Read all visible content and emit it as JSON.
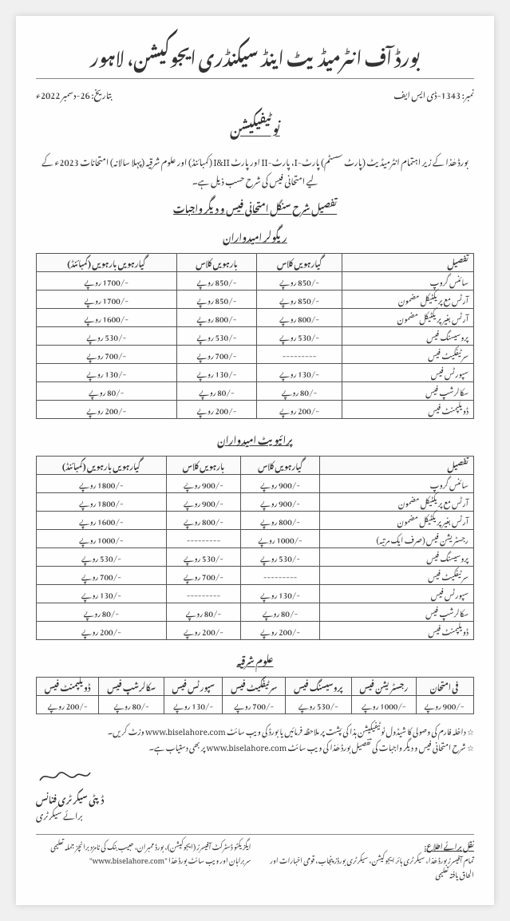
{
  "header": {
    "org_title": "بورڈ آف انٹرمیڈیٹ اینڈ سیکنڈری ایجوکیشن، لاہور",
    "ref_no": "نمبر: 1343-ڈی ایس ایف",
    "date": "بتاریخ: 26-دسمبر 2022ء",
    "notification": "نوٹیفیکیشن"
  },
  "intro": "بورڈ ھٰذا کے زیر اہتمام انٹرمیڈیٹ (پارٹ سسٹم) پارٹ-I، پارٹ-II اور پارٹ I&II (کمبائنڈ) اور علوم شرقیہ (پہلا سالانہ) امتحانات 2023ء کے لیے امتحانی فیس کی شرح حسب ذیل ہے۔",
  "detail_heading": "تفصیل شرح سنگل امتحانی فیس و دیگر واجبات",
  "section1": {
    "title": "ریگولر امیدواران",
    "headers": [
      "تفصیل",
      "گیارہویں کلاس",
      "بارہویں کلاس",
      "گیارہویں بارہویں (کمبائنڈ)"
    ],
    "rows": [
      [
        "سائنس گروپ",
        "-/850 روپے",
        "-/850 روپے",
        "-/1700 روپے"
      ],
      [
        "آرٹس مع پریکٹیکل مضمون",
        "-/850 روپے",
        "-/850 روپے",
        "-/1700 روپے"
      ],
      [
        "آرٹس بغیر پریکٹیکل مضمون",
        "-/800 روپے",
        "-/800 روپے",
        "-/1600 روپے"
      ],
      [
        "پروسیسنگ فیس",
        "-/530 روپے",
        "-/530 روپے",
        "-/530 روپے"
      ],
      [
        "سرٹیفکیٹ فیس",
        "---------",
        "-/700 روپے",
        "-/700 روپے"
      ],
      [
        "سپورٹس فیس",
        "-/130 روپے",
        "-/130 روپے",
        "-/130 روپے"
      ],
      [
        "سکالرشپ فیس",
        "-/80 روپے",
        "-/80 روپے",
        "-/80 روپے"
      ],
      [
        "ڈویلپمنٹ فیس",
        "-/200 روپے",
        "-/200 روپے",
        "-/200 روپے"
      ]
    ]
  },
  "section2": {
    "title": "پرائیویٹ امیدواران",
    "headers": [
      "تفصیل",
      "گیارہویں کلاس",
      "بارہویں کلاس",
      "گیارہویں بارہویں (کمبائنڈ)"
    ],
    "rows": [
      [
        "سائنس گروپ",
        "-/900 روپے",
        "-/900 روپے",
        "-/1800 روپے"
      ],
      [
        "آرٹس مع پریکٹیکل مضمون",
        "-/900 روپے",
        "-/900 روپے",
        "-/1800 روپے"
      ],
      [
        "آرٹس بغیر پریکٹیکل مضمون",
        "-/800 روپے",
        "-/800 روپے",
        "-/1600 روپے"
      ],
      [
        "رجسٹریشن فیس (صرف ایک مرتبہ)",
        "-/1000 روپے",
        "---------",
        "-/1000 روپے"
      ],
      [
        "پروسیسنگ فیس",
        "-/530 روپے",
        "-/530 روپے",
        "-/530 روپے"
      ],
      [
        "سرٹیفکیٹ فیس",
        "---------",
        "-/700 روپے",
        "-/700 روپے"
      ],
      [
        "سپورٹس فیس",
        "-/130 روپے",
        "---------",
        "-/130 روپے"
      ],
      [
        "سکالرشپ فیس",
        "-/80 روپے",
        "-/80 روپے",
        "-/80 روپے"
      ],
      [
        "ڈویلپمنٹ فیس",
        "-/200 روپے",
        "-/200 روپے",
        "-/200 روپے"
      ]
    ]
  },
  "section3": {
    "title": "علوم شرقیہ",
    "headers": [
      "فی امتحان",
      "رجسٹریشن فیس",
      "پروسیسنگ فیس",
      "سرٹیفکیٹ فیس",
      "سپورٹس فیس",
      "سکالرشپ فیس",
      "ڈویلپمنٹ فیس"
    ],
    "row": [
      "-/900 روپے",
      "-/1000 روپے",
      "-/530 روپے",
      "-/700 روپے",
      "-/130 روپے",
      "-/80 روپے",
      "-/200 روپے"
    ]
  },
  "notes": [
    "☆ داخلہ فارم کی وصولی کا شیڈول نوٹیفیکیشن ہذا کی پشت پر ملاحظہ فرمائیں یا بورڈ کی ویب سائٹ www.biselahore.com وزٹ کریں۔",
    "☆ شرح امتحانی فیس و دیگر واجبات کی تفصیل بورڈ ھٰذا کی ویب سائٹ www.biselahore.com پر بھی دستیاب ہے۔"
  ],
  "signature": {
    "title": "ڈپٹی سیکرٹری فنانس",
    "subtitle": "برائے سیکرٹری"
  },
  "footer": {
    "heading_right": "نقل برائے اطلاع:",
    "text_right": "تمام آفیسرز بورڈ ھٰذا، سیکرٹری ہائر ایجوکیشن، سیکرٹری بورڈز پنجاب، قومی اخبارات اور الحاق یافتہ تعلیمی",
    "text_left": "ایگزیکٹو ڈسٹرکٹ آفیسرز (ایجوکیشن)، بورڈ ممبران، حبیب بنک کی نامزد برانچز جملہ تعلیمی سربراہان اور ویب سائٹ بورڈ ھٰذا \"www.biselahore.com\""
  }
}
